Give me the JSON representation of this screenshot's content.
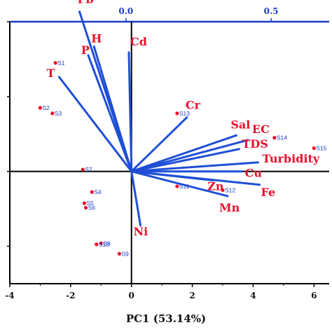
{
  "chart_data": {
    "type": "scatter",
    "subtype": "pca-biplot",
    "xlabel": "PC1 (53.14%)",
    "bottom_axis": {
      "range": [
        -4,
        6.5
      ],
      "ticks": [
        -4,
        -2,
        0,
        2,
        4,
        6
      ]
    },
    "left_axis": {
      "range": [
        -3,
        4
      ],
      "ticks": [
        -2,
        0,
        2,
        4
      ],
      "tick_labels_visible": false
    },
    "top_axis": {
      "range": [
        -0.4,
        0.7
      ],
      "ticks": [
        0.0,
        0.5
      ],
      "tick_labels": [
        "0.0",
        "0.5"
      ],
      "color": "#1a3dc8"
    },
    "grid": false,
    "colors": {
      "point": "#e8112d",
      "point_label": "#1a3dc8",
      "loading": "#1f4fd6",
      "loading_label": "#e8112d",
      "axes": "#000000"
    },
    "scores": [
      {
        "label": "S1",
        "x": -2.5,
        "y": 2.9
      },
      {
        "label": "S2",
        "x": -3.0,
        "y": 1.7
      },
      {
        "label": "S3",
        "x": -2.6,
        "y": 1.55
      },
      {
        "label": "S4",
        "x": -1.3,
        "y": -0.55
      },
      {
        "label": "S5",
        "x": -1.55,
        "y": -0.85
      },
      {
        "label": "S6",
        "x": -1.5,
        "y": -0.97
      },
      {
        "label": "S7",
        "x": -1.6,
        "y": 0.05
      },
      {
        "label": "S8",
        "x": -1.0,
        "y": -1.92
      },
      {
        "label": "S9",
        "x": -0.4,
        "y": -2.2
      },
      {
        "label": "S10",
        "x": -1.15,
        "y": -1.95
      },
      {
        "label": "S11",
        "x": 1.5,
        "y": -0.4
      },
      {
        "label": "S12",
        "x": 3.0,
        "y": -0.5
      },
      {
        "label": "S13",
        "x": 1.5,
        "y": 1.55
      },
      {
        "label": "S14",
        "x": 4.7,
        "y": 0.9
      },
      {
        "label": "S15",
        "x": 6.0,
        "y": 0.62
      }
    ],
    "loadings": [
      {
        "label": "Pb",
        "x": -0.16,
        "y": 0.55
      },
      {
        "label": "T",
        "x": -0.23,
        "y": 0.325
      },
      {
        "label": "P",
        "x": -0.13,
        "y": 0.4
      },
      {
        "label": "H",
        "x": -0.11,
        "y": 0.43
      },
      {
        "label": "Cd",
        "x": 0.01,
        "y": 0.41
      },
      {
        "label": "Cr",
        "x": 0.21,
        "y": 0.186
      },
      {
        "label": "Sal",
        "x": 0.38,
        "y": 0.124
      },
      {
        "label": "EC",
        "x": 0.42,
        "y": 0.108
      },
      {
        "label": "TDS",
        "x": 0.39,
        "y": 0.077
      },
      {
        "label": "Turbidity",
        "x": 0.455,
        "y": 0.031
      },
      {
        "label": "Cu",
        "x": 0.4,
        "y": 0.0
      },
      {
        "label": "Zn",
        "x": 0.3,
        "y": -0.031
      },
      {
        "label": "Fe",
        "x": 0.46,
        "y": -0.046
      },
      {
        "label": "Mn",
        "x": 0.35,
        "y": -0.085
      },
      {
        "label": "Ni",
        "x": 0.05,
        "y": -0.186
      }
    ]
  }
}
